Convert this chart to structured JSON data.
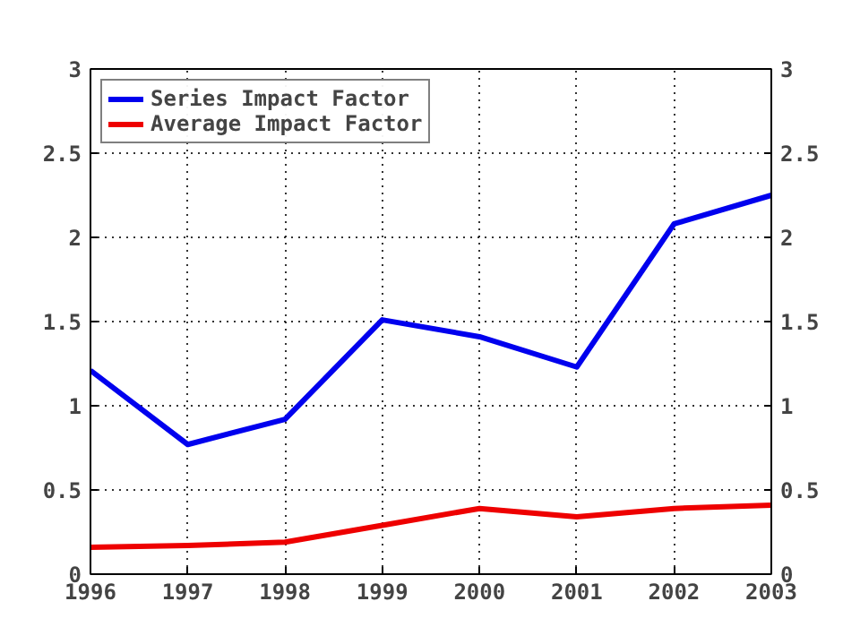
{
  "chart_data": {
    "type": "line",
    "x": [
      1996,
      1997,
      1998,
      1999,
      2000,
      2001,
      2002,
      2003
    ],
    "series": [
      {
        "name": "Series Impact Factor",
        "color": "#0000ee",
        "values": [
          1.21,
          0.77,
          0.92,
          1.51,
          1.41,
          1.23,
          2.08,
          2.25
        ]
      },
      {
        "name": "Average Impact Factor",
        "color": "#ee0000",
        "values": [
          0.16,
          0.17,
          0.19,
          0.29,
          0.39,
          0.34,
          0.39,
          0.41
        ]
      }
    ],
    "xlim": [
      1996,
      2003
    ],
    "xticks": [
      1996,
      1997,
      1998,
      1999,
      2000,
      2001,
      2002,
      2003
    ],
    "ylim": [
      0,
      3
    ],
    "yticks": [
      0,
      0.5,
      1,
      1.5,
      2,
      2.5,
      3
    ],
    "y2lim": [
      0,
      3
    ],
    "y2ticks": [
      0,
      0.5,
      1,
      1.5,
      2,
      2.5,
      3
    ],
    "grid": true,
    "legend": "top left",
    "line_style": "solid",
    "marker": "none"
  }
}
